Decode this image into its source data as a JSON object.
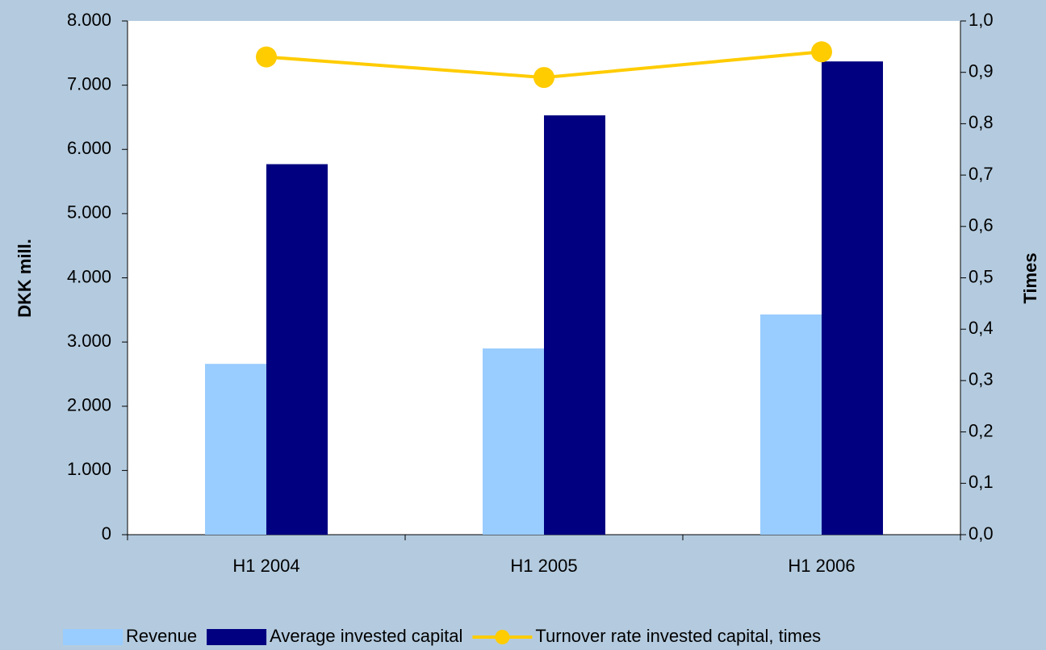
{
  "chart_data": {
    "type": "bar-line",
    "y_label": "DKK mill.",
    "y2_label": "Times",
    "categories": [
      "H1 2004",
      "H1 2005",
      "H1 2006"
    ],
    "series": [
      {
        "name": "Revenue",
        "type": "bar",
        "color": "#99ccff",
        "values": [
          2660,
          2900,
          3430
        ]
      },
      {
        "name": "Average invested capital",
        "type": "bar",
        "color": "#000080",
        "values": [
          5770,
          6530,
          7370
        ]
      },
      {
        "name": "Turnover rate invested capital, times",
        "type": "line",
        "axis": "y2",
        "color": "#ffcc00",
        "values": [
          0.93,
          0.89,
          0.94
        ]
      }
    ],
    "ylim": [
      0,
      8000
    ],
    "yticks": [
      0,
      {
        "value": 1000,
        "label": "1.000"
      },
      {
        "value": 2000,
        "label": "2.000"
      },
      {
        "value": 3000,
        "label": "3.000"
      },
      {
        "value": 4000,
        "label": "4.000"
      },
      {
        "value": 5000,
        "label": "5.000"
      },
      {
        "value": 6000,
        "label": "6.000"
      },
      {
        "value": 7000,
        "label": "7.000"
      },
      {
        "value": 8000,
        "label": "8.000"
      }
    ],
    "y2lim": [
      0,
      1
    ],
    "y2ticks": [
      {
        "value": 0,
        "label": "0,0"
      },
      {
        "value": 0.1,
        "label": "0,1"
      },
      {
        "value": 0.2,
        "label": "0,2"
      },
      {
        "value": 0.3,
        "label": "0,3"
      },
      {
        "value": 0.4,
        "label": "0,4"
      },
      {
        "value": 0.5,
        "label": "0,5"
      },
      {
        "value": 0.6,
        "label": "0,6"
      },
      {
        "value": 0.7,
        "label": "0,7"
      },
      {
        "value": 0.8,
        "label": "0,8"
      },
      {
        "value": 0.9,
        "label": "0,9"
      },
      {
        "value": 1,
        "label": "1,0"
      }
    ],
    "legend": "bottom"
  }
}
